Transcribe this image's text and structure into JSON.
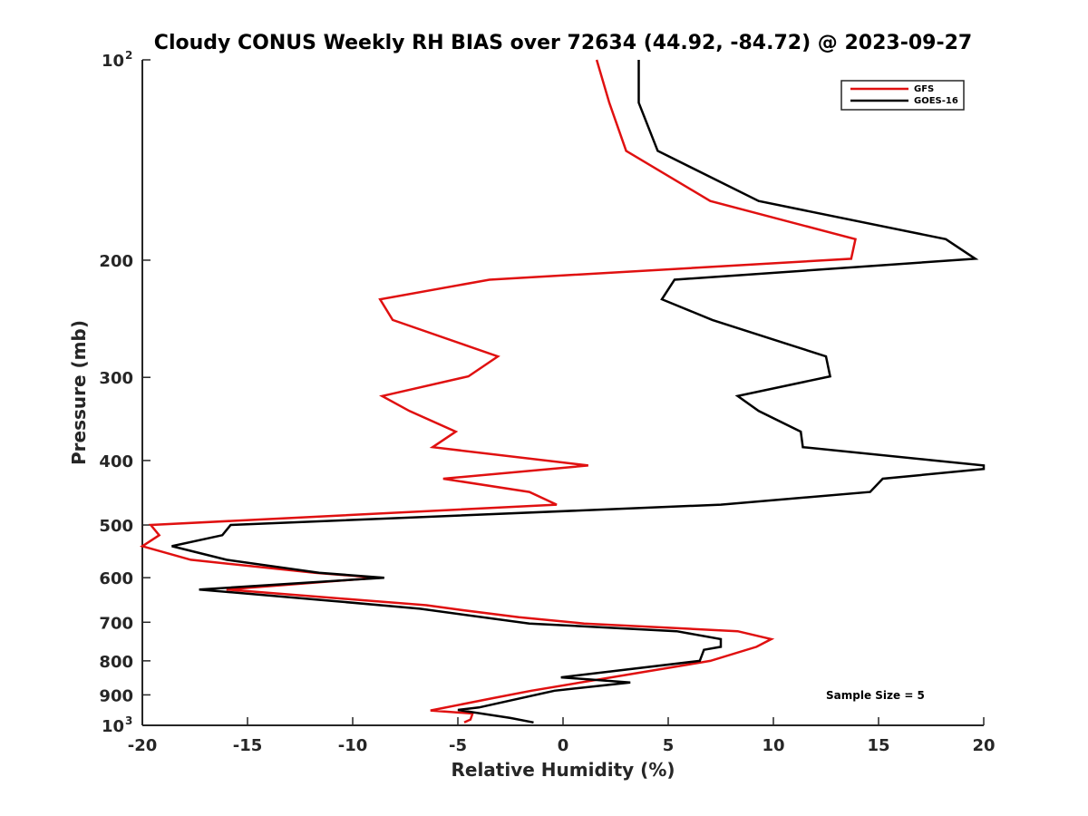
{
  "chart_data": {
    "type": "line",
    "title": "Cloudy CONUS Weekly RH BIAS over 72634 (44.92, -84.72) @ 2023-09-27",
    "xlabel": "Relative Humidity (%)",
    "ylabel": "Pressure (mb)",
    "xlim": [
      -20,
      20
    ],
    "ylim": [
      100,
      1000
    ],
    "y_scale": "log",
    "y_reversed": true,
    "grid": false,
    "legend_position": "top-right",
    "annotation": "Sample Size = 5",
    "x_ticks": [
      "-20",
      "-15",
      "-10",
      "-5",
      "0",
      "5",
      "10",
      "15",
      "20"
    ],
    "y_ticks": [
      {
        "value": 100,
        "base": "10",
        "exp": "2"
      },
      {
        "value": 200,
        "base": "200",
        "exp": ""
      },
      {
        "value": 300,
        "base": "300",
        "exp": ""
      },
      {
        "value": 400,
        "base": "400",
        "exp": ""
      },
      {
        "value": 500,
        "base": "500",
        "exp": ""
      },
      {
        "value": 600,
        "base": "600",
        "exp": ""
      },
      {
        "value": 700,
        "base": "700",
        "exp": ""
      },
      {
        "value": 800,
        "base": "800",
        "exp": ""
      },
      {
        "value": 900,
        "base": "900",
        "exp": ""
      },
      {
        "value": 1000,
        "base": "10",
        "exp": "3"
      }
    ],
    "series": [
      {
        "name": "GFS",
        "color": "#e01010",
        "points": [
          [
            1.6,
            100
          ],
          [
            2.2,
            116
          ],
          [
            3.0,
            137
          ],
          [
            7.0,
            163
          ],
          [
            13.9,
            186
          ],
          [
            13.7,
            199
          ],
          [
            -3.5,
            214
          ],
          [
            -8.7,
            229
          ],
          [
            -8.1,
            246
          ],
          [
            -3.1,
            279
          ],
          [
            -4.5,
            299
          ],
          [
            -8.6,
            320
          ],
          [
            -7.3,
            337
          ],
          [
            -5.1,
            362
          ],
          [
            -6.2,
            382
          ],
          [
            1.2,
            407
          ],
          [
            -5.7,
            426
          ],
          [
            -1.6,
            446
          ],
          [
            -0.3,
            466
          ],
          [
            -19.6,
            500
          ],
          [
            -19.2,
            518
          ],
          [
            -20.0,
            538
          ],
          [
            -17.7,
            564
          ],
          [
            -11.8,
            590
          ],
          [
            -8.8,
            600
          ],
          [
            -16.0,
            625
          ],
          [
            -6.5,
            660
          ],
          [
            -5.0,
            670
          ],
          [
            -2.1,
            688
          ],
          [
            1.0,
            703
          ],
          [
            8.3,
            722
          ],
          [
            9.9,
            742
          ],
          [
            9.2,
            762
          ],
          [
            7.0,
            800
          ],
          [
            -1.5,
            887
          ],
          [
            -3.3,
            910
          ],
          [
            -6.3,
            950
          ],
          [
            -4.3,
            960
          ],
          [
            -4.4,
            980
          ],
          [
            -4.7,
            990
          ]
        ]
      },
      {
        "name": "GOES-16",
        "color": "#000000",
        "points": [
          [
            3.6,
            100
          ],
          [
            3.6,
            116
          ],
          [
            4.5,
            137
          ],
          [
            9.3,
            163
          ],
          [
            18.2,
            186
          ],
          [
            19.6,
            199
          ],
          [
            5.3,
            214
          ],
          [
            4.7,
            229
          ],
          [
            7.1,
            246
          ],
          [
            12.5,
            279
          ],
          [
            12.7,
            299
          ],
          [
            8.3,
            320
          ],
          [
            9.3,
            337
          ],
          [
            11.3,
            362
          ],
          [
            11.4,
            382
          ],
          [
            20.0,
            407
          ],
          [
            20.0,
            412
          ],
          [
            15.2,
            426
          ],
          [
            14.6,
            446
          ],
          [
            7.5,
            466
          ],
          [
            -15.8,
            500
          ],
          [
            -16.2,
            518
          ],
          [
            -18.6,
            538
          ],
          [
            -16.0,
            564
          ],
          [
            -11.6,
            590
          ],
          [
            -8.5,
            600
          ],
          [
            -17.3,
            625
          ],
          [
            -11.0,
            650
          ],
          [
            -6.8,
            668
          ],
          [
            -1.6,
            703
          ],
          [
            5.4,
            722
          ],
          [
            7.5,
            742
          ],
          [
            7.5,
            762
          ],
          [
            6.7,
            770
          ],
          [
            6.5,
            800
          ],
          [
            -0.1,
            847
          ],
          [
            3.2,
            862
          ],
          [
            -0.4,
            887
          ],
          [
            -4.0,
            940
          ],
          [
            -5.0,
            948
          ],
          [
            -2.5,
            975
          ],
          [
            -1.4,
            990
          ]
        ]
      }
    ]
  }
}
